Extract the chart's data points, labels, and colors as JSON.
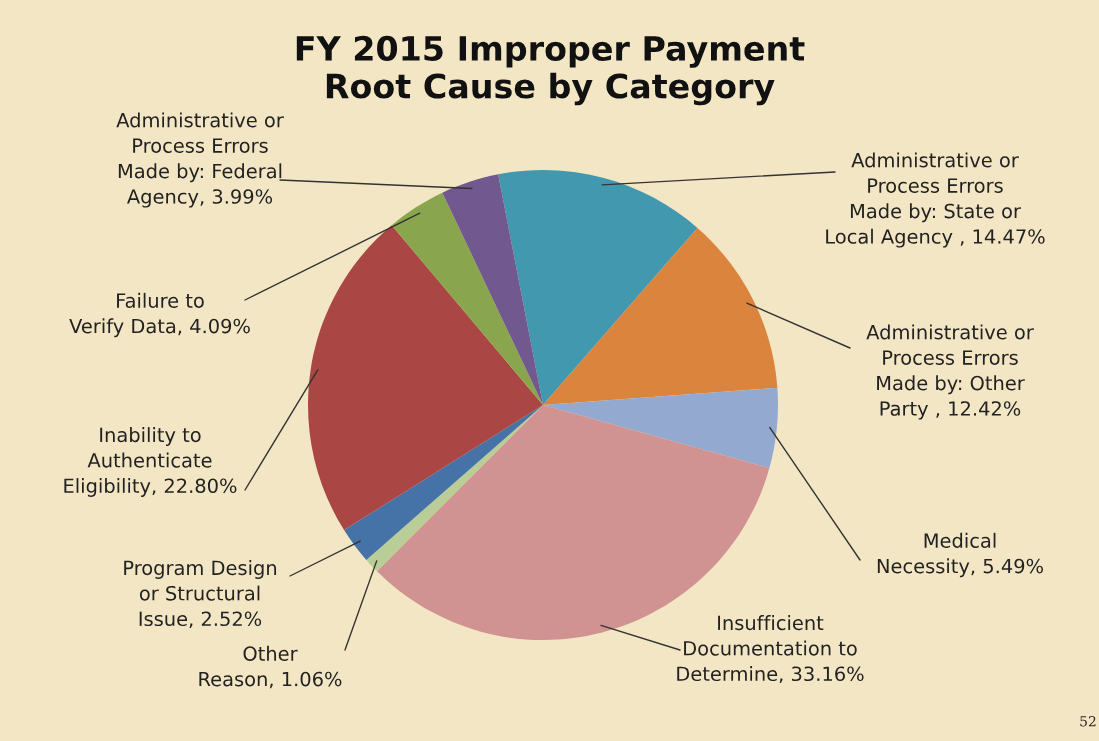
{
  "chart_data": {
    "type": "pie",
    "title": "FY 2015 Improper Payment Root Cause by Category",
    "categories": [
      "Administrative or Process Errors Made by: State or Local Agency ",
      "Administrative or Process Errors Made by: Other Party ",
      "Medical Necessity",
      "Insufficient Documentation to Determine",
      "Other Reason",
      "Program Design or Structural Issue",
      "Inability to Authenticate Eligibility",
      "Failure to Verify Data",
      "Administrative or Process Errors Made by: Federal Agency"
    ],
    "values": [
      14.47,
      12.42,
      5.49,
      33.16,
      1.06,
      2.52,
      22.8,
      4.09,
      3.99
    ],
    "value_labels": [
      "14.47%",
      "12.42%",
      "5.49%",
      "33.16%",
      "1.06%",
      "2.52%",
      "22.80%",
      "4.09%",
      "3.99%"
    ],
    "colors": [
      "#4198af",
      "#db843d",
      "#93a9cf",
      "#d09392",
      "#b9cd96",
      "#4572a7",
      "#aa4643",
      "#89a54e",
      "#71588f"
    ],
    "annotations": [
      "52"
    ]
  }
}
